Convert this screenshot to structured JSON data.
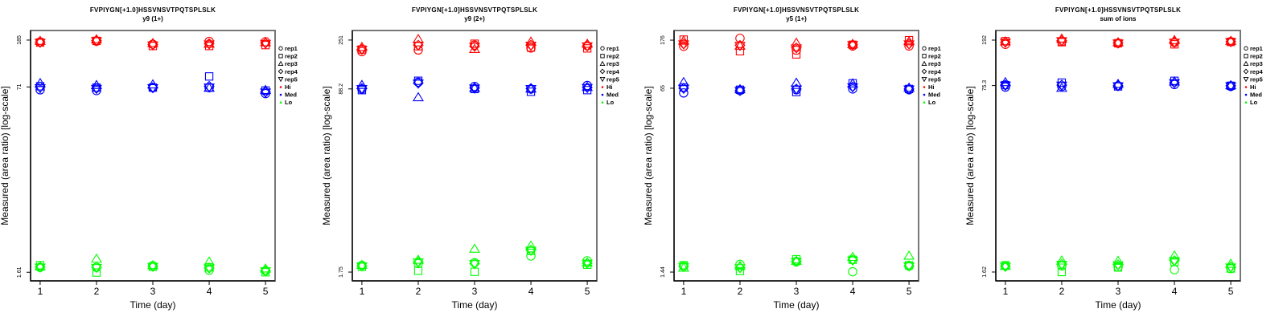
{
  "chart_data": [
    {
      "type": "scatter",
      "title": "FVPIYGN[+1.0]HSSVNSVTPQTSPLSLK",
      "subtitle": "y9 (1+)",
      "xlabel": "Time (day)",
      "ylabel": "Measured (area ratio) [log-scale]",
      "y_scale": "log",
      "xlim": [
        0.83,
        5.17
      ],
      "ylim": [
        1.35,
        225
      ],
      "x_ticks": [
        "1",
        "2",
        "3",
        "4",
        "5"
      ],
      "y_ticks": [
        {
          "value": 185,
          "label": "185"
        },
        {
          "value": 71,
          "label": "71"
        },
        {
          "value": 1.61,
          "label": "1.61"
        }
      ],
      "legend_position": "right",
      "series": [
        {
          "name": "Hi",
          "color": "#ff0000",
          "points": {
            "rep1": [
              178,
              181,
              170,
              180,
              179
            ],
            "rep2": [
              176,
              182,
              164,
              164,
              167
            ],
            "rep3": [
              180,
              186,
              172,
              170,
              175
            ],
            "rep4": [
              177,
              183,
              169,
              172,
              174
            ],
            "rep5": [
              177,
              183,
              168,
              171,
              173
            ]
          }
        },
        {
          "name": "Med",
          "color": "#0000ff",
          "points": {
            "rep1": [
              67,
              66,
              70,
              70,
              62
            ],
            "rep2": [
              72,
              70,
              70,
              88,
              66
            ],
            "rep3": [
              76,
              73,
              74,
              69,
              66
            ],
            "rep4": [
              71,
              69,
              70,
              72,
              64
            ],
            "rep5": [
              70,
              69,
              70,
              71,
              64
            ]
          }
        },
        {
          "name": "Lo",
          "color": "#00ff00",
          "points": {
            "rep1": [
              1.78,
              1.78,
              1.84,
              1.68,
              1.66
            ],
            "rep2": [
              1.86,
              1.6,
              1.8,
              1.78,
              1.61
            ],
            "rep3": [
              1.8,
              2.1,
              1.84,
              1.98,
              1.72
            ],
            "rep4": [
              1.79,
              1.78,
              1.82,
              1.76,
              1.66
            ],
            "rep5": [
              1.79,
              1.78,
              1.82,
              1.76,
              1.66
            ]
          }
        }
      ]
    },
    {
      "type": "scatter",
      "title": "FVPIYGN[+1.0]HSSVNSVTPQTSPLSLK",
      "subtitle": "y9 (2+)",
      "xlabel": "Time (day)",
      "ylabel": "Measured (area ratio) [log-scale]",
      "y_scale": "log",
      "xlim": [
        0.83,
        5.17
      ],
      "ylim": [
        1.45,
        308
      ],
      "x_ticks": [
        "1",
        "2",
        "3",
        "4",
        "5"
      ],
      "y_ticks": [
        {
          "value": 251,
          "label": "251"
        },
        {
          "value": 88.2,
          "label": "88.2"
        },
        {
          "value": 1.75,
          "label": "1.75"
        }
      ],
      "legend_position": "right",
      "series": [
        {
          "name": "Hi",
          "color": "#ff0000",
          "points": {
            "rep1": [
              196,
              203,
              225,
              212,
              222
            ],
            "rep2": [
              205,
              220,
              232,
              214,
              210
            ],
            "rep3": [
              214,
              254,
              205,
              240,
              229
            ],
            "rep4": [
              206,
              225,
              220,
              225,
              222
            ],
            "rep5": [
              206,
              225,
              220,
              225,
              222
            ]
          }
        },
        {
          "name": "Med",
          "color": "#0000ff",
          "points": {
            "rep1": [
              88,
              102,
              93,
              88,
              95
            ],
            "rep2": [
              86,
              105,
              88,
              83,
              86
            ],
            "rep3": [
              95,
              73,
              89,
              88,
              91
            ],
            "rep4": [
              89,
              100,
              90,
              89,
              91
            ],
            "rep5": [
              89,
              100,
              90,
              89,
              91
            ]
          }
        },
        {
          "name": "Lo",
          "color": "#00ff00",
          "points": {
            "rep1": [
              2.02,
              2.1,
              2.14,
              2.47,
              2.23
            ],
            "rep2": [
              1.96,
              1.8,
              1.76,
              2.75,
              2.05
            ],
            "rep3": [
              2.02,
              2.25,
              2.85,
              3.05,
              2.12
            ],
            "rep4": [
              2.0,
              2.18,
              2.1,
              2.8,
              2.12
            ],
            "rep5": [
              2.0,
              2.18,
              2.1,
              2.8,
              2.12
            ]
          }
        }
      ]
    },
    {
      "type": "scatter",
      "title": "FVPIYGN[+1.0]HSSVNSVTPQTSPLSLK",
      "subtitle": "y5 (1+)",
      "xlabel": "Time (day)",
      "ylabel": "Measured (area ratio) [log-scale]",
      "y_scale": "log",
      "xlim": [
        0.83,
        5.17
      ],
      "ylim": [
        1.2,
        215
      ],
      "x_ticks": [
        "1",
        "2",
        "3",
        "4",
        "5"
      ],
      "y_ticks": [
        {
          "value": 176,
          "label": "176"
        },
        {
          "value": 65,
          "label": "65"
        },
        {
          "value": 1.44,
          "label": "1.44"
        }
      ],
      "legend_position": "right",
      "series": [
        {
          "name": "Hi",
          "color": "#ff0000",
          "points": {
            "rep1": [
              155,
              183,
              143,
              156,
              156
            ],
            "rep2": [
              178,
              140,
              131,
              160,
              176
            ],
            "rep3": [
              172,
              155,
              165,
              161,
              170
            ],
            "rep4": [
              163,
              158,
              150,
              160,
              163
            ],
            "rep5": [
              163,
              158,
              150,
              160,
              163
            ]
          }
        },
        {
          "name": "Med",
          "color": "#0000ff",
          "points": {
            "rep1": [
              59,
              62,
              63,
              64,
              63
            ],
            "rep2": [
              66,
              63,
              60,
              72,
              64
            ],
            "rep3": [
              73,
              63,
              72,
              71,
              65
            ],
            "rep4": [
              65,
              62,
              64,
              67,
              64
            ],
            "rep5": [
              65,
              62,
              64,
              67,
              64
            ]
          }
        },
        {
          "name": "Lo",
          "color": "#00ff00",
          "points": {
            "rep1": [
              1.63,
              1.69,
              1.78,
              1.45,
              1.63
            ],
            "rep2": [
              1.66,
              1.47,
              1.88,
              1.86,
              1.66
            ],
            "rep3": [
              1.56,
              1.62,
              1.8,
              1.95,
              2.0
            ],
            "rep4": [
              1.62,
              1.58,
              1.8,
              1.85,
              1.64
            ],
            "rep5": [
              1.62,
              1.58,
              1.8,
              1.85,
              1.64
            ]
          }
        }
      ]
    },
    {
      "type": "scatter",
      "title": "FVPIYGN[+1.0]HSSVNSVTPQTSPLSLK",
      "subtitle": "sum of ions",
      "xlabel": "Time (day)",
      "ylabel": "Measured (area ratio) [log-scale]",
      "y_scale": "log",
      "xlim": [
        0.83,
        5.17
      ],
      "ylim": [
        1.35,
        234
      ],
      "x_ticks": [
        "1",
        "2",
        "3",
        "4",
        "5"
      ],
      "y_ticks": [
        {
          "value": 192,
          "label": "192"
        },
        {
          "value": 75.3,
          "label": "75.3"
        },
        {
          "value": 1.62,
          "label": "1.62"
        }
      ],
      "legend_position": "right",
      "series": [
        {
          "name": "Hi",
          "color": "#ff0000",
          "points": {
            "rep1": [
              176,
              186,
              180,
              183,
              186
            ],
            "rep2": [
              188,
              184,
              180,
              176,
              185
            ],
            "rep3": [
              185,
              196,
              182,
              190,
              187
            ],
            "rep4": [
              184,
              190,
              181,
              184,
              186
            ],
            "rep5": [
              184,
              190,
              181,
              184,
              186
            ]
          }
        },
        {
          "name": "Med",
          "color": "#0000ff",
          "points": {
            "rep1": [
              73,
              74,
              75,
              77,
              74
            ],
            "rep2": [
              76,
              80,
              74,
              83,
              75
            ],
            "rep3": [
              80,
              71,
              77,
              81,
              75
            ],
            "rep4": [
              76,
              76,
              75,
              80,
              75
            ],
            "rep5": [
              76,
              76,
              75,
              80,
              75
            ]
          }
        },
        {
          "name": "Lo",
          "color": "#00ff00",
          "points": {
            "rep1": [
              1.84,
              1.84,
              1.8,
              1.7,
              1.74
            ],
            "rep2": [
              1.86,
              1.62,
              1.78,
              2.0,
              1.74
            ],
            "rep3": [
              1.82,
              2.03,
              2.02,
              2.25,
              1.9
            ],
            "rep4": [
              1.82,
              1.9,
              1.88,
              2.05,
              1.8
            ],
            "rep5": [
              1.82,
              1.9,
              1.88,
              2.05,
              1.8
            ]
          }
        }
      ]
    }
  ],
  "legend": {
    "items": [
      {
        "label": "rep1",
        "symbol": "circle"
      },
      {
        "label": "rep2",
        "symbol": "square"
      },
      {
        "label": "rep3",
        "symbol": "triangle-up"
      },
      {
        "label": "rep4",
        "symbol": "diamond"
      },
      {
        "label": "rep5",
        "symbol": "triangle-down"
      },
      {
        "label": "Hi",
        "symbol": "dot",
        "color": "#ff0000"
      },
      {
        "label": "Med",
        "symbol": "dot",
        "color": "#0000ff"
      },
      {
        "label": "Lo",
        "symbol": "dot",
        "color": "#00ff00"
      }
    ]
  }
}
